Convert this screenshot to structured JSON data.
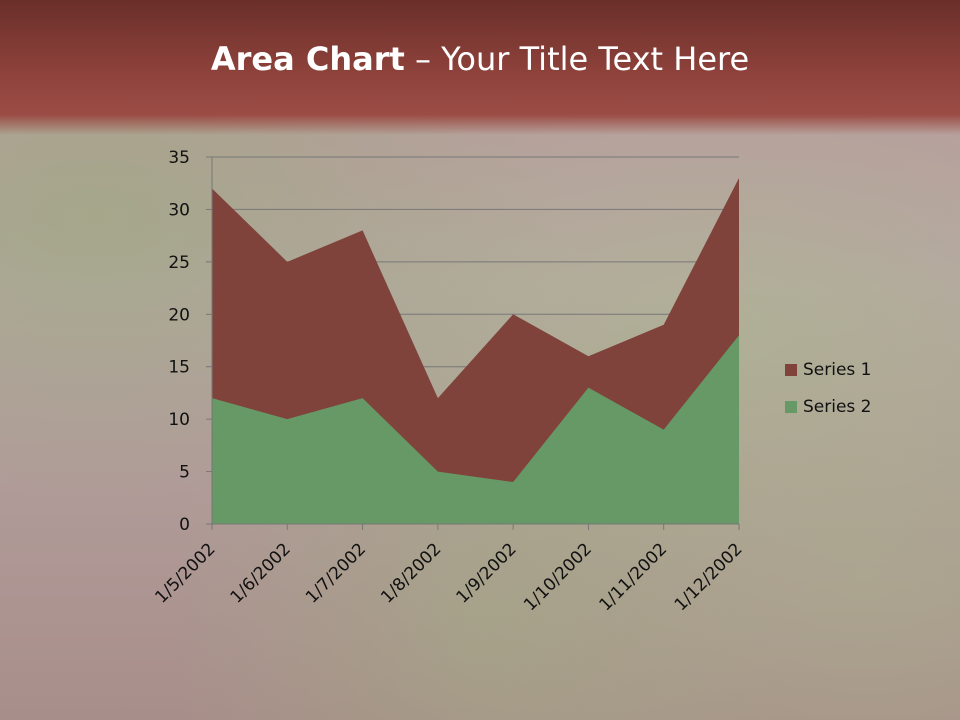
{
  "slide": {
    "title_bold": "Area Chart",
    "title_rest": " – Your Title Text Here"
  },
  "chart_data": {
    "type": "area",
    "categories": [
      "1/5/2002",
      "1/6/2002",
      "1/7/2002",
      "1/8/2002",
      "1/9/2002",
      "1/10/2002",
      "1/11/2002",
      "1/12/2002"
    ],
    "series": [
      {
        "name": "Series 1",
        "values": [
          32,
          25,
          28,
          12,
          20,
          16,
          19,
          33
        ],
        "color": "#7f433b"
      },
      {
        "name": "Series 2",
        "values": [
          12,
          10,
          12,
          5,
          4,
          13,
          9,
          18
        ],
        "color": "#669966"
      }
    ],
    "ylim": [
      0,
      35
    ],
    "yticks": [
      0,
      5,
      10,
      15,
      20,
      25,
      30,
      35
    ],
    "grid": true,
    "legend": "right"
  }
}
